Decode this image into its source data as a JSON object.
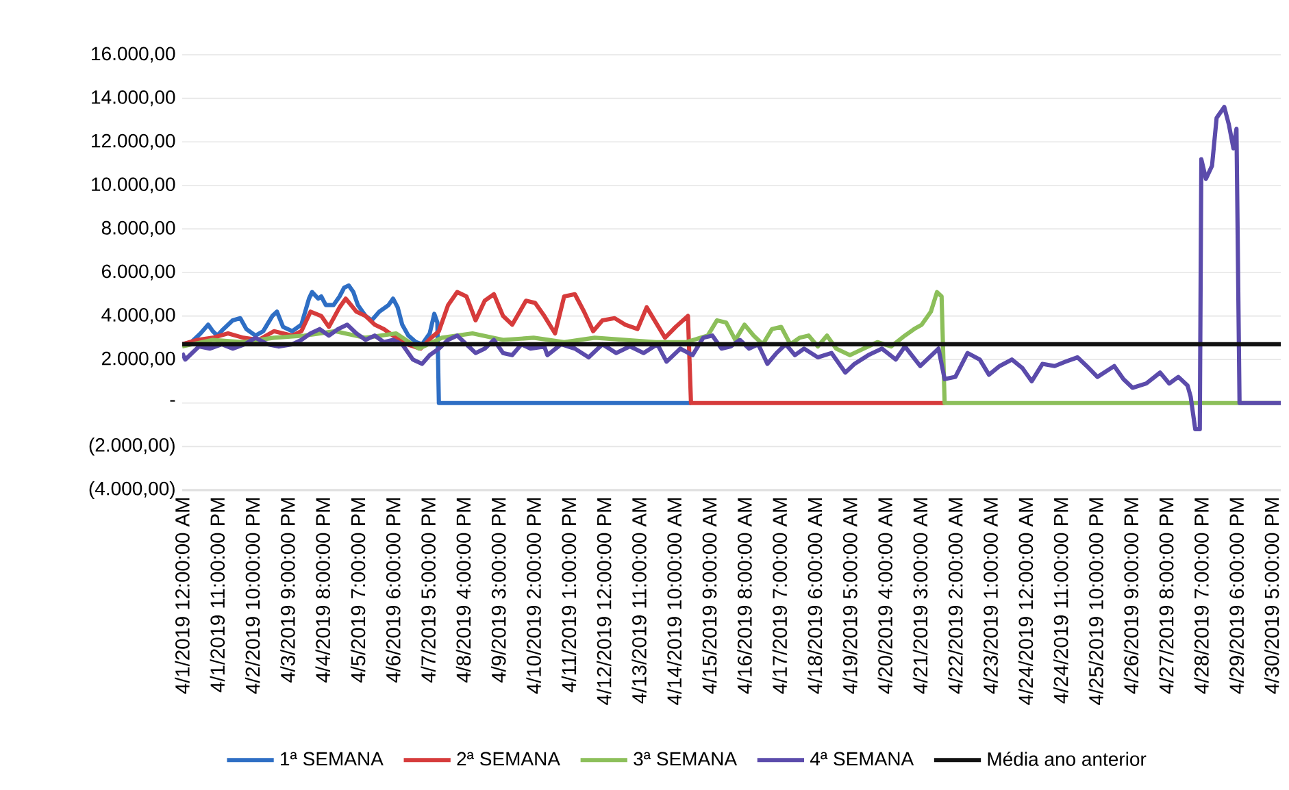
{
  "chart_data": {
    "type": "line",
    "xlim": [
      "2019-04-01T00:00",
      "2019-04-30T23:00"
    ],
    "xticks": [
      {
        "value": "2019-04-01T00:00",
        "label": "4/1/2019 12:00:00 AM"
      },
      {
        "value": "2019-04-01T23:00",
        "label": "4/1/2019 11:00:00 PM"
      },
      {
        "value": "2019-04-02T22:00",
        "label": "4/2/2019 10:00:00 PM"
      },
      {
        "value": "2019-04-03T21:00",
        "label": "4/3/2019 9:00:00 PM"
      },
      {
        "value": "2019-04-04T20:00",
        "label": "4/4/2019 8:00:00 PM"
      },
      {
        "value": "2019-04-05T19:00",
        "label": "4/5/2019 7:00:00 PM"
      },
      {
        "value": "2019-04-06T18:00",
        "label": "4/6/2019 6:00:00 PM"
      },
      {
        "value": "2019-04-07T17:00",
        "label": "4/7/2019 5:00:00 PM"
      },
      {
        "value": "2019-04-08T16:00",
        "label": "4/8/2019 4:00:00 PM"
      },
      {
        "value": "2019-04-09T15:00",
        "label": "4/9/2019 3:00:00 PM"
      },
      {
        "value": "2019-04-10T14:00",
        "label": "4/10/2019 2:00:00 PM"
      },
      {
        "value": "2019-04-11T13:00",
        "label": "4/11/2019 1:00:00 PM"
      },
      {
        "value": "2019-04-12T12:00",
        "label": "4/12/2019 12:00:00 PM"
      },
      {
        "value": "2019-04-13T11:00",
        "label": "4/13/2019 11:00:00 AM"
      },
      {
        "value": "2019-04-14T10:00",
        "label": "4/14/2019 10:00:00 AM"
      },
      {
        "value": "2019-04-15T09:00",
        "label": "4/15/2019 9:00:00 AM"
      },
      {
        "value": "2019-04-16T08:00",
        "label": "4/16/2019 8:00:00 AM"
      },
      {
        "value": "2019-04-17T07:00",
        "label": "4/17/2019 7:00:00 AM"
      },
      {
        "value": "2019-04-18T06:00",
        "label": "4/18/2019 6:00:00 AM"
      },
      {
        "value": "2019-04-19T05:00",
        "label": "4/19/2019 5:00:00 AM"
      },
      {
        "value": "2019-04-20T04:00",
        "label": "4/20/2019 4:00:00 AM"
      },
      {
        "value": "2019-04-21T03:00",
        "label": "4/21/2019 3:00:00 AM"
      },
      {
        "value": "2019-04-22T02:00",
        "label": "4/22/2019 2:00:00 AM"
      },
      {
        "value": "2019-04-23T01:00",
        "label": "4/23/2019 1:00:00 AM"
      },
      {
        "value": "2019-04-24T00:00",
        "label": "4/24/2019 12:00:00 AM"
      },
      {
        "value": "2019-04-24T23:00",
        "label": "4/24/2019 11:00:00 PM"
      },
      {
        "value": "2019-04-25T22:00",
        "label": "4/25/2019 10:00:00 PM"
      },
      {
        "value": "2019-04-26T21:00",
        "label": "4/26/2019 9:00:00 PM"
      },
      {
        "value": "2019-04-27T20:00",
        "label": "4/27/2019 8:00:00 PM"
      },
      {
        "value": "2019-04-28T19:00",
        "label": "4/28/2019 7:00:00 PM"
      },
      {
        "value": "2019-04-29T18:00",
        "label": "4/29/2019 6:00:00 PM"
      },
      {
        "value": "2019-04-30T17:00",
        "label": "4/30/2019 5:00:00 PM"
      }
    ],
    "ylim": [
      -4000,
      16000
    ],
    "yticks": [
      {
        "value": -4000,
        "label": "(4.000,00)"
      },
      {
        "value": -2000,
        "label": "(2.000,00)"
      },
      {
        "value": 0,
        "label": "-"
      },
      {
        "value": 2000,
        "label": "2.000,00"
      },
      {
        "value": 4000,
        "label": "4.000,00"
      },
      {
        "value": 6000,
        "label": "6.000,00"
      },
      {
        "value": 8000,
        "label": "8.000,00"
      },
      {
        "value": 10000,
        "label": "10.000,00"
      },
      {
        "value": 12000,
        "label": "12.000,00"
      },
      {
        "value": 14000,
        "label": "14.000,00"
      },
      {
        "value": 16000,
        "label": "16.000,00"
      }
    ],
    "grid": "y",
    "legend": "bottom",
    "marker": "none",
    "line_style": "solid",
    "series": [
      {
        "name": "1ª SEMANA",
        "color": "#2e6ec4",
        "x": [
          "2019-04-01T00:00",
          "2019-04-01T06:00",
          "2019-04-01T12:00",
          "2019-04-01T17:00",
          "2019-04-01T20:00",
          "2019-04-01T23:00",
          "2019-04-02T03:00",
          "2019-04-02T09:00",
          "2019-04-02T14:00",
          "2019-04-02T18:00",
          "2019-04-03T00:00",
          "2019-04-03T05:00",
          "2019-04-03T11:00",
          "2019-04-03T14:00",
          "2019-04-03T18:00",
          "2019-04-04T00:00",
          "2019-04-04T06:00",
          "2019-04-04T11:00",
          "2019-04-04T13:00",
          "2019-04-04T17:00",
          "2019-04-04T19:00",
          "2019-04-04T22:00",
          "2019-04-05T03:00",
          "2019-04-05T07:00",
          "2019-04-05T10:00",
          "2019-04-05T13:00",
          "2019-04-05T16:00",
          "2019-04-05T19:00",
          "2019-04-06T00:00",
          "2019-04-06T04:00",
          "2019-04-06T09:00",
          "2019-04-06T15:00",
          "2019-04-06T18:00",
          "2019-04-06T21:00",
          "2019-04-07T00:00",
          "2019-04-07T04:00",
          "2019-04-07T09:00",
          "2019-04-07T13:00",
          "2019-04-07T18:00",
          "2019-04-07T21:00",
          "2019-04-07T23:00",
          "2019-04-08T00:00",
          "2019-04-14T21:00"
        ],
        "values": [
          2700,
          2800,
          3200,
          3600,
          3300,
          3100,
          3400,
          3800,
          3900,
          3400,
          3100,
          3300,
          4000,
          4200,
          3500,
          3300,
          3600,
          4800,
          5100,
          4800,
          4900,
          4500,
          4500,
          4900,
          5300,
          5400,
          5100,
          4500,
          4000,
          3800,
          4200,
          4500,
          4800,
          4400,
          3600,
          3100,
          2800,
          2700,
          3200,
          4100,
          3700,
          0,
          0
        ]
      },
      {
        "name": "2ª SEMANA",
        "color": "#d63b3b",
        "x": [
          "2019-04-01T00:00",
          "2019-04-01T10:00",
          "2019-04-01T20:00",
          "2019-04-02T06:00",
          "2019-04-02T16:00",
          "2019-04-03T02:00",
          "2019-04-03T12:00",
          "2019-04-04T00:00",
          "2019-04-04T06:00",
          "2019-04-04T12:00",
          "2019-04-04T19:00",
          "2019-04-05T00:00",
          "2019-04-05T07:00",
          "2019-04-05T11:00",
          "2019-04-05T18:00",
          "2019-04-06T00:00",
          "2019-04-06T06:00",
          "2019-04-06T12:00",
          "2019-04-06T18:00",
          "2019-04-07T03:00",
          "2019-04-07T12:00",
          "2019-04-07T19:00",
          "2019-04-08T00:00",
          "2019-04-08T06:00",
          "2019-04-08T12:00",
          "2019-04-08T18:00",
          "2019-04-09T00:00",
          "2019-04-09T06:00",
          "2019-04-09T12:00",
          "2019-04-09T18:00",
          "2019-04-10T00:00",
          "2019-04-10T09:00",
          "2019-04-10T15:00",
          "2019-04-10T21:00",
          "2019-04-11T04:00",
          "2019-04-11T10:00",
          "2019-04-11T17:00",
          "2019-04-11T23:00",
          "2019-04-12T05:00",
          "2019-04-12T11:00",
          "2019-04-12T19:00",
          "2019-04-13T02:00",
          "2019-04-13T10:00",
          "2019-04-13T16:00",
          "2019-04-13T22:00",
          "2019-04-14T04:00",
          "2019-04-14T11:00",
          "2019-04-14T19:00",
          "2019-04-14T21:00",
          "2019-04-21T19:00"
        ],
        "values": [
          2700,
          2900,
          3000,
          3200,
          3000,
          2900,
          3300,
          3100,
          3300,
          4200,
          4000,
          3500,
          4400,
          4800,
          4200,
          4000,
          3600,
          3400,
          3100,
          2700,
          2500,
          3000,
          3300,
          4500,
          5100,
          4900,
          3800,
          4700,
          5000,
          4000,
          3600,
          4700,
          4600,
          4000,
          3200,
          4900,
          5000,
          4200,
          3300,
          3800,
          3900,
          3600,
          3400,
          4400,
          3700,
          3000,
          3500,
          4000,
          0,
          0
        ]
      },
      {
        "name": "3ª SEMANA",
        "color": "#8cbf5a",
        "x": [
          "2019-04-01T00:00",
          "2019-04-01T20:00",
          "2019-04-02T16:00",
          "2019-04-03T12:00",
          "2019-04-04T08:00",
          "2019-04-05T04:00",
          "2019-04-06T00:00",
          "2019-04-06T20:00",
          "2019-04-07T11:00",
          "2019-04-08T02:00",
          "2019-04-08T22:00",
          "2019-04-09T18:00",
          "2019-04-10T14:00",
          "2019-04-11T10:00",
          "2019-04-12T06:00",
          "2019-04-13T02:00",
          "2019-04-13T22:00",
          "2019-04-14T18:00",
          "2019-04-15T08:00",
          "2019-04-15T14:00",
          "2019-04-15T20:00",
          "2019-04-16T02:00",
          "2019-04-16T08:00",
          "2019-04-16T14:00",
          "2019-04-16T20:00",
          "2019-04-17T02:00",
          "2019-04-17T08:00",
          "2019-04-17T14:00",
          "2019-04-17T20:00",
          "2019-04-18T02:00",
          "2019-04-18T08:00",
          "2019-04-18T14:00",
          "2019-04-18T20:00",
          "2019-04-19T05:00",
          "2019-04-19T14:00",
          "2019-04-19T23:00",
          "2019-04-20T08:00",
          "2019-04-20T17:00",
          "2019-04-20T23:00",
          "2019-04-21T04:00",
          "2019-04-21T10:00",
          "2019-04-21T14:00",
          "2019-04-21T17:00",
          "2019-04-21T19:00",
          "2019-04-30T23:00"
        ],
        "values": [
          2600,
          2900,
          2800,
          3000,
          3100,
          3300,
          3000,
          3200,
          2500,
          3000,
          3200,
          2900,
          3000,
          2800,
          3000,
          2900,
          2800,
          2800,
          3100,
          3800,
          3700,
          2900,
          3600,
          3100,
          2700,
          3400,
          3500,
          2700,
          3000,
          3100,
          2600,
          3100,
          2500,
          2200,
          2500,
          2800,
          2600,
          3100,
          3400,
          3600,
          4200,
          5100,
          4900,
          0,
          0
        ]
      },
      {
        "name": "4ª SEMANA",
        "color": "#5b4bab",
        "x": [
          "2019-04-01T00:00",
          "2019-04-01T02:00",
          "2019-04-01T11:00",
          "2019-04-01T18:00",
          "2019-04-02T02:00",
          "2019-04-02T09:00",
          "2019-04-02T17:00",
          "2019-04-03T00:00",
          "2019-04-03T08:00",
          "2019-04-03T15:00",
          "2019-04-04T00:00",
          "2019-04-04T06:00",
          "2019-04-04T12:00",
          "2019-04-04T18:00",
          "2019-04-05T00:00",
          "2019-04-05T06:00",
          "2019-04-05T12:00",
          "2019-04-05T18:00",
          "2019-04-06T00:00",
          "2019-04-06T06:00",
          "2019-04-06T12:00",
          "2019-04-06T18:00",
          "2019-04-07T00:00",
          "2019-04-07T07:00",
          "2019-04-07T13:00",
          "2019-04-07T18:00",
          "2019-04-08T00:00",
          "2019-04-08T06:00",
          "2019-04-08T12:00",
          "2019-04-08T18:00",
          "2019-04-09T00:00",
          "2019-04-09T06:00",
          "2019-04-09T12:00",
          "2019-04-09T18:00",
          "2019-04-10T00:00",
          "2019-04-10T06:00",
          "2019-04-10T12:00",
          "2019-04-10T21:00",
          "2019-04-10T23:00",
          "2019-04-11T08:00",
          "2019-04-11T17:00",
          "2019-04-12T02:00",
          "2019-04-12T11:00",
          "2019-04-12T20:00",
          "2019-04-13T05:00",
          "2019-04-13T14:00",
          "2019-04-13T23:00",
          "2019-04-14T05:00",
          "2019-04-14T14:00",
          "2019-04-14T22:00",
          "2019-04-15T05:00",
          "2019-04-15T11:00",
          "2019-04-15T17:00",
          "2019-04-15T23:00",
          "2019-04-16T05:00",
          "2019-04-16T11:00",
          "2019-04-16T17:00",
          "2019-04-16T23:00",
          "2019-04-17T05:00",
          "2019-04-17T11:00",
          "2019-04-17T17:00",
          "2019-04-17T23:00",
          "2019-04-18T08:00",
          "2019-04-18T17:00",
          "2019-04-19T02:00",
          "2019-04-19T08:00",
          "2019-04-19T17:00",
          "2019-04-20T02:00",
          "2019-04-20T11:00",
          "2019-04-20T17:00",
          "2019-04-21T03:00",
          "2019-04-21T15:00",
          "2019-04-21T19:00",
          "2019-04-22T02:00",
          "2019-04-22T10:00",
          "2019-04-22T18:00",
          "2019-04-23T00:00",
          "2019-04-23T07:00",
          "2019-04-23T15:00",
          "2019-04-23T22:00",
          "2019-04-24T04:00",
          "2019-04-24T11:00",
          "2019-04-24T19:00",
          "2019-04-25T02:00",
          "2019-04-25T10:00",
          "2019-04-25T16:00",
          "2019-04-25T23:00",
          "2019-04-26T10:00",
          "2019-04-26T16:00",
          "2019-04-26T22:00",
          "2019-04-27T07:00",
          "2019-04-27T16:00",
          "2019-04-27T22:00",
          "2019-04-28T04:00",
          "2019-04-28T10:00",
          "2019-04-28T12:00",
          "2019-04-28T15:00",
          "2019-04-28T18:00",
          "2019-04-28T19:00",
          "2019-04-28T22:00",
          "2019-04-29T02:00",
          "2019-04-29T05:00",
          "2019-04-29T08:00",
          "2019-04-29T10:00",
          "2019-04-29T13:00",
          "2019-04-29T16:00",
          "2019-04-29T18:00",
          "2019-04-29T20:00",
          "2019-04-30T23:00"
        ],
        "values": [
          2300,
          2000,
          2600,
          2500,
          2700,
          2500,
          2700,
          3000,
          2700,
          2600,
          2700,
          2900,
          3200,
          3400,
          3100,
          3400,
          3600,
          3200,
          2900,
          3100,
          2800,
          2900,
          2700,
          2000,
          1800,
          2200,
          2500,
          2900,
          3100,
          2700,
          2300,
          2500,
          2900,
          2300,
          2200,
          2700,
          2500,
          2600,
          2200,
          2700,
          2500,
          2100,
          2700,
          2300,
          2600,
          2300,
          2700,
          1900,
          2500,
          2200,
          3000,
          3100,
          2500,
          2600,
          2900,
          2500,
          2700,
          1800,
          2300,
          2700,
          2200,
          2500,
          2100,
          2300,
          1400,
          1800,
          2200,
          2500,
          2000,
          2600,
          1700,
          2500,
          1100,
          1200,
          2300,
          2000,
          1300,
          1700,
          2000,
          1600,
          1000,
          1800,
          1700,
          1900,
          2100,
          1700,
          1200,
          1700,
          1100,
          700,
          900,
          1400,
          900,
          1200,
          800,
          300,
          -1200,
          -1200,
          11200,
          10300,
          10900,
          13100,
          13400,
          13600,
          12800,
          11700,
          12600,
          0,
          0
        ]
      },
      {
        "name": "Média ano anterior",
        "color": "#111111",
        "x": [
          "2019-04-01T00:00",
          "2019-04-30T23:00"
        ],
        "values": [
          2700,
          2700
        ]
      }
    ]
  }
}
